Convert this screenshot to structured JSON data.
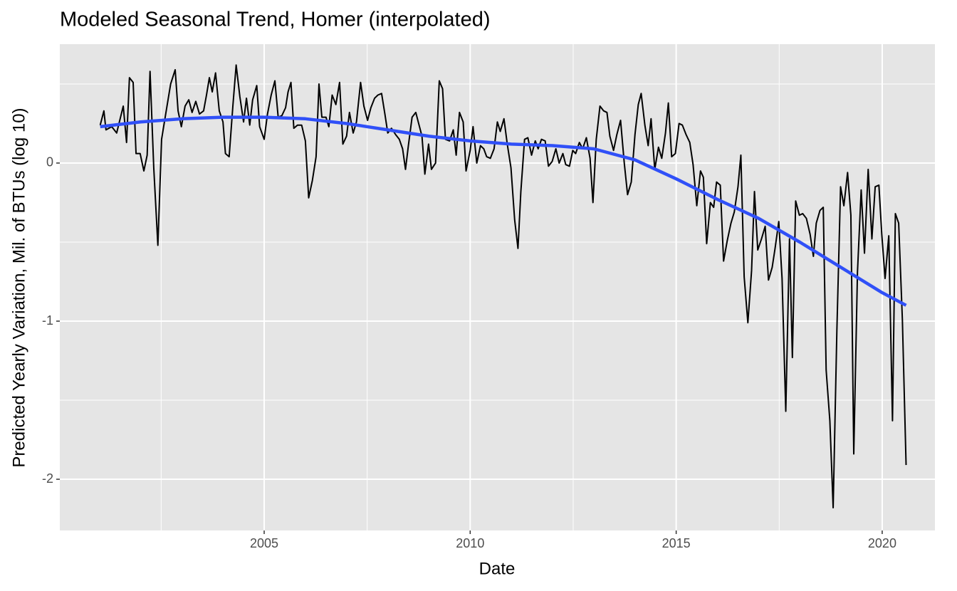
{
  "chart_data": {
    "type": "line",
    "title": "Modeled Seasonal Trend, Homer (interpolated)",
    "x_label": "Date",
    "y_label": "Predicted Yearly Variation, Mil. of BTUs (log 10)",
    "xlim": [
      2000.04,
      2021.28
    ],
    "xticks": [
      2005,
      2010,
      2015,
      2020
    ],
    "x_minor_breaks": [
      2002.5,
      2007.5,
      2012.5,
      2017.5
    ],
    "ylim": [
      -2.324,
      0.752
    ],
    "yticks": [
      -2,
      -1,
      0
    ],
    "y_minor_breaks": [
      -1.5,
      -0.5,
      0.5
    ],
    "grid": true,
    "panel_color": "#e5e5e5",
    "series": [
      {
        "name": "observed",
        "color": "#000000",
        "width": 2,
        "x": [
          2001.02,
          2001.11,
          2001.16,
          2001.3,
          2001.42,
          2001.58,
          2001.66,
          2001.73,
          2001.82,
          2001.89,
          2001.99,
          2002.08,
          2002.16,
          2002.23,
          2002.32,
          2002.42,
          2002.51,
          2002.61,
          2002.73,
          2002.84,
          2002.91,
          2002.99,
          2003.08,
          2003.17,
          2003.25,
          2003.34,
          2003.43,
          2003.53,
          2003.6,
          2003.67,
          2003.74,
          2003.82,
          2003.91,
          2004.0,
          2004.06,
          2004.15,
          2004.24,
          2004.32,
          2004.41,
          2004.5,
          2004.57,
          2004.65,
          2004.72,
          2004.82,
          2004.89,
          2005.0,
          2005.08,
          2005.17,
          2005.26,
          2005.34,
          2005.43,
          2005.52,
          2005.58,
          2005.65,
          2005.72,
          2005.81,
          2005.91,
          2006.0,
          2006.08,
          2006.17,
          2006.26,
          2006.33,
          2006.4,
          2006.5,
          2006.57,
          2006.65,
          2006.74,
          2006.83,
          2006.91,
          2007.0,
          2007.07,
          2007.16,
          2007.24,
          2007.34,
          2007.42,
          2007.51,
          2007.59,
          2007.68,
          2007.76,
          2007.85,
          2007.93,
          2008.0,
          2008.09,
          2008.19,
          2008.28,
          2008.36,
          2008.43,
          2008.5,
          2008.59,
          2008.68,
          2008.76,
          2008.83,
          2008.9,
          2008.99,
          2009.06,
          2009.16,
          2009.25,
          2009.33,
          2009.4,
          2009.5,
          2009.59,
          2009.66,
          2009.74,
          2009.83,
          2009.9,
          2010.0,
          2010.07,
          2010.16,
          2010.25,
          2010.33,
          2010.4,
          2010.49,
          2010.58,
          2010.66,
          2010.73,
          2010.82,
          2010.9,
          2010.99,
          2011.08,
          2011.16,
          2011.23,
          2011.32,
          2011.4,
          2011.49,
          2011.58,
          2011.65,
          2011.73,
          2011.82,
          2011.9,
          2011.99,
          2012.08,
          2012.16,
          2012.25,
          2012.32,
          2012.41,
          2012.49,
          2012.56,
          2012.65,
          2012.73,
          2012.82,
          2012.91,
          2012.98,
          2013.06,
          2013.15,
          2013.24,
          2013.32,
          2013.39,
          2013.48,
          2013.56,
          2013.65,
          2013.74,
          2013.82,
          2013.91,
          2014.0,
          2014.08,
          2014.15,
          2014.24,
          2014.32,
          2014.39,
          2014.48,
          2014.57,
          2014.65,
          2014.74,
          2014.81,
          2014.89,
          2014.98,
          2015.07,
          2015.15,
          2015.24,
          2015.33,
          2015.41,
          2015.5,
          2015.59,
          2015.66,
          2015.74,
          2015.83,
          2015.91,
          2015.98,
          2016.07,
          2016.15,
          2016.24,
          2016.33,
          2016.41,
          2016.5,
          2016.57,
          2016.65,
          2016.74,
          2016.83,
          2016.9,
          2016.98,
          2017.07,
          2017.16,
          2017.24,
          2017.33,
          2017.4,
          2017.49,
          2017.57,
          2017.66,
          2017.75,
          2017.82,
          2017.9,
          2017.99,
          2018.07,
          2018.16,
          2018.25,
          2018.33,
          2018.4,
          2018.49,
          2018.57,
          2018.64,
          2018.73,
          2018.81,
          2018.9,
          2018.99,
          2019.07,
          2019.16,
          2019.24,
          2019.31,
          2019.4,
          2019.49,
          2019.57,
          2019.66,
          2019.75,
          2019.83,
          2019.92,
          2019.99,
          2020.07,
          2020.16,
          2020.25,
          2020.32,
          2020.4,
          2020.49,
          2020.58
        ],
        "values": [
          0.24,
          0.33,
          0.21,
          0.23,
          0.19,
          0.36,
          0.13,
          0.54,
          0.51,
          0.06,
          0.06,
          -0.05,
          0.05,
          0.58,
          -0.03,
          -0.52,
          0.15,
          0.31,
          0.5,
          0.59,
          0.33,
          0.23,
          0.36,
          0.4,
          0.32,
          0.39,
          0.31,
          0.33,
          0.43,
          0.54,
          0.45,
          0.57,
          0.33,
          0.26,
          0.06,
          0.04,
          0.36,
          0.62,
          0.42,
          0.26,
          0.41,
          0.24,
          0.4,
          0.49,
          0.23,
          0.15,
          0.31,
          0.43,
          0.52,
          0.29,
          0.3,
          0.35,
          0.45,
          0.51,
          0.22,
          0.24,
          0.24,
          0.14,
          -0.22,
          -0.11,
          0.04,
          0.5,
          0.29,
          0.29,
          0.23,
          0.43,
          0.37,
          0.51,
          0.12,
          0.17,
          0.32,
          0.19,
          0.26,
          0.51,
          0.36,
          0.27,
          0.35,
          0.41,
          0.43,
          0.44,
          0.31,
          0.19,
          0.22,
          0.18,
          0.15,
          0.09,
          -0.04,
          0.11,
          0.29,
          0.32,
          0.24,
          0.17,
          -0.07,
          0.12,
          -0.04,
          0.0,
          0.52,
          0.47,
          0.15,
          0.14,
          0.21,
          0.05,
          0.32,
          0.26,
          -0.05,
          0.08,
          0.23,
          0.0,
          0.11,
          0.09,
          0.04,
          0.03,
          0.09,
          0.26,
          0.2,
          0.28,
          0.12,
          -0.03,
          -0.36,
          -0.54,
          -0.18,
          0.15,
          0.16,
          0.05,
          0.14,
          0.09,
          0.15,
          0.14,
          -0.02,
          0.01,
          0.09,
          0.0,
          0.06,
          -0.01,
          -0.02,
          0.08,
          0.06,
          0.13,
          0.09,
          0.16,
          0.03,
          -0.25,
          0.15,
          0.36,
          0.33,
          0.32,
          0.17,
          0.08,
          0.18,
          0.27,
          0.0,
          -0.2,
          -0.12,
          0.18,
          0.37,
          0.44,
          0.24,
          0.11,
          0.28,
          -0.04,
          0.1,
          0.03,
          0.19,
          0.38,
          0.04,
          0.06,
          0.25,
          0.24,
          0.18,
          0.13,
          -0.01,
          -0.27,
          -0.05,
          -0.09,
          -0.51,
          -0.25,
          -0.28,
          -0.12,
          -0.14,
          -0.62,
          -0.49,
          -0.38,
          -0.31,
          -0.15,
          0.05,
          -0.72,
          -1.01,
          -0.68,
          -0.18,
          -0.55,
          -0.48,
          -0.4,
          -0.74,
          -0.66,
          -0.54,
          -0.37,
          -0.73,
          -1.57,
          -0.48,
          -1.23,
          -0.24,
          -0.33,
          -0.32,
          -0.35,
          -0.45,
          -0.59,
          -0.38,
          -0.3,
          -0.28,
          -1.31,
          -1.63,
          -2.18,
          -1.06,
          -0.15,
          -0.27,
          -0.06,
          -0.33,
          -1.84,
          -0.69,
          -0.17,
          -0.57,
          -0.04,
          -0.48,
          -0.15,
          -0.14,
          -0.45,
          -0.73,
          -0.46,
          -1.63,
          -0.32,
          -0.38,
          -0.99,
          -1.91
        ]
      },
      {
        "name": "trend",
        "color": "#3050f8",
        "width": 4.5,
        "x": [
          2001.02,
          2002,
          2003,
          2004,
          2005,
          2006,
          2007,
          2008,
          2009,
          2010,
          2011,
          2012,
          2013,
          2014,
          2015,
          2016,
          2017,
          2018,
          2019,
          2020,
          2020.58
        ],
        "values": [
          0.23,
          0.26,
          0.28,
          0.29,
          0.29,
          0.28,
          0.25,
          0.21,
          0.17,
          0.14,
          0.12,
          0.11,
          0.09,
          0.02,
          -0.1,
          -0.23,
          -0.35,
          -0.5,
          -0.66,
          -0.82,
          -0.9
        ]
      }
    ]
  }
}
